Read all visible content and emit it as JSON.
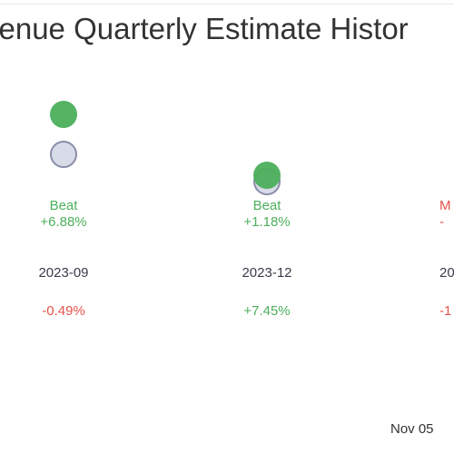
{
  "colors": {
    "beat": "#4caf5c",
    "miss": "#e5534b",
    "estimate_fill": "#d8dbe8",
    "estimate_stroke": "#8a8ea8",
    "text": "#333333"
  },
  "chart_data": {
    "type": "scatter",
    "title": "venue Quarterly Estimate Histor",
    "legend": "none",
    "grid": false,
    "periods": [
      {
        "period": "2023-09",
        "status": "Beat",
        "surprise": "+6.88%",
        "change": "-0.49%",
        "actual_rel": 1.0688,
        "estimate_rel": 1.0
      },
      {
        "period": "2023-12",
        "status": "Beat",
        "surprise": "+1.18%",
        "change": "+7.45%",
        "actual_rel": 1.0118,
        "estimate_rel": 1.0
      },
      {
        "period": "20",
        "status": "M",
        "surprise": "-",
        "change": "-1",
        "actual_rel": null,
        "estimate_rel": null
      }
    ],
    "date_label": "Nov 05"
  }
}
